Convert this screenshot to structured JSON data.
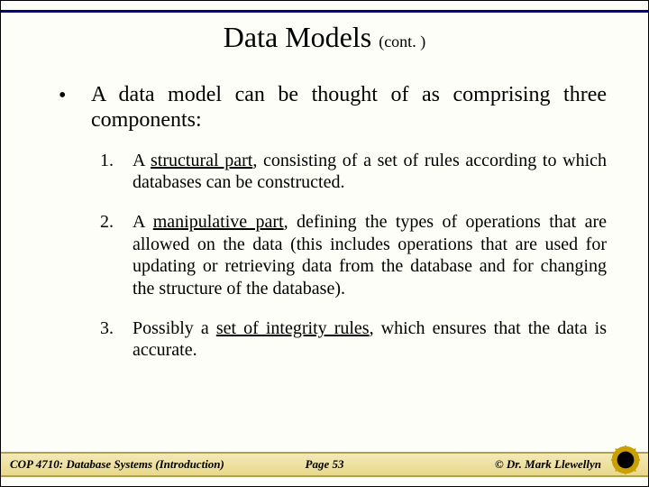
{
  "colors": {
    "top_line": "#000080",
    "background": "#fefef8",
    "footer_grad_top": "#f4e9b8",
    "footer_grad_bot": "#e8d98a",
    "footer_line": "#b0a050",
    "logo_outer": "#c9a000",
    "logo_inner": "#000000"
  },
  "title": {
    "main": "Data Models ",
    "cont": "(cont. )",
    "fontsize_main": 32,
    "fontsize_cont": 18
  },
  "lead": {
    "bullet": "•",
    "text": "A data model can be thought of as comprising three components:",
    "fontsize": 24
  },
  "items": [
    {
      "num": "1.",
      "segments": [
        {
          "t": "A "
        },
        {
          "t": "structural part",
          "u": true
        },
        {
          "t": ", consisting of a set of rules according to which databases can be constructed."
        }
      ]
    },
    {
      "num": "2.",
      "segments": [
        {
          "t": "A "
        },
        {
          "t": "manipulative part",
          "u": true
        },
        {
          "t": ", defining the types of operations that are allowed on the data (this includes operations that are used for updating or retrieving data from the database and for changing the structure of the database)."
        }
      ]
    },
    {
      "num": "3.",
      "segments": [
        {
          "t": "Possibly a "
        },
        {
          "t": "set of integrity rules",
          "u": true
        },
        {
          "t": ", which ensures that the data is accurate."
        }
      ]
    }
  ],
  "item_fontsize": 20,
  "footer": {
    "left": "COP 4710: Database Systems  (Introduction)",
    "center": "Page 53",
    "right": "©  Dr. Mark Llewellyn",
    "fontsize": 13
  }
}
